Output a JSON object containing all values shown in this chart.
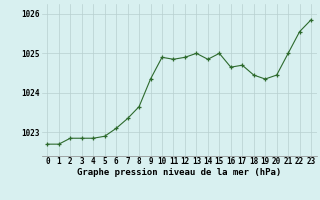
{
  "x": [
    0,
    1,
    2,
    3,
    4,
    5,
    6,
    7,
    8,
    9,
    10,
    11,
    12,
    13,
    14,
    15,
    16,
    17,
    18,
    19,
    20,
    21,
    22,
    23
  ],
  "y": [
    1022.7,
    1022.7,
    1022.85,
    1022.85,
    1022.85,
    1022.9,
    1023.1,
    1023.35,
    1023.65,
    1024.35,
    1024.9,
    1024.85,
    1024.9,
    1025.0,
    1024.85,
    1025.0,
    1024.65,
    1024.7,
    1024.45,
    1024.35,
    1024.45,
    1025.0,
    1025.55,
    1025.85
  ],
  "line_color": "#2d6a2d",
  "marker_color": "#2d6a2d",
  "bg_color": "#d8f0f0",
  "grid_color": "#b8d0d0",
  "xlabel": "Graphe pression niveau de la mer (hPa)",
  "ylim_min": 1022.4,
  "ylim_max": 1026.25,
  "ytick_values": [
    1023,
    1024,
    1025,
    1026
  ],
  "xtick_labels": [
    "0",
    "1",
    "2",
    "3",
    "4",
    "5",
    "6",
    "7",
    "8",
    "9",
    "10",
    "11",
    "12",
    "13",
    "14",
    "15",
    "16",
    "17",
    "18",
    "19",
    "20",
    "21",
    "22",
    "23"
  ],
  "title_fontsize": 6.5,
  "tick_fontsize": 5.5
}
